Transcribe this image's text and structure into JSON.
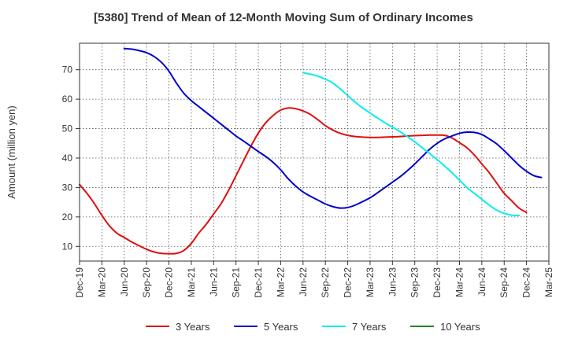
{
  "chart_data": {
    "type": "line",
    "title": "[5380]  Trend of Mean of 12-Month Moving Sum of Ordinary Incomes",
    "xlabel": "",
    "ylabel": "Amount (million yen)",
    "ylim": [
      5,
      79
    ],
    "yticks": [
      10,
      20,
      30,
      40,
      50,
      60,
      70
    ],
    "x_tick_labels": [
      "Dec-19",
      "Mar-20",
      "Jun-20",
      "Sep-20",
      "Dec-20",
      "Mar-21",
      "Jun-21",
      "Sep-21",
      "Dec-21",
      "Mar-22",
      "Jun-22",
      "Sep-22",
      "Dec-22",
      "Mar-23",
      "Jun-23",
      "Sep-23",
      "Dec-23",
      "Mar-24",
      "Jun-24",
      "Sep-24",
      "Dec-24",
      "Mar-25"
    ],
    "grid": true,
    "legend_position": "bottom",
    "series": [
      {
        "name": "3 Years",
        "color": "#dd1111",
        "start_index": 0,
        "values": [
          31,
          28,
          24.5,
          20.5,
          17,
          14.5,
          13,
          11.5,
          10.2,
          9,
          8.1,
          7.6,
          7.5,
          7.6,
          8.6,
          11,
          14.5,
          17.5,
          21,
          24.5,
          29,
          34,
          39,
          44,
          48.5,
          52,
          54.5,
          56.3,
          57,
          56.8,
          56,
          54.8,
          53,
          51,
          49.5,
          48.4,
          47.7,
          47.3,
          47.1,
          47,
          47,
          47.1,
          47.2,
          47.3,
          47.5,
          47.6,
          47.7,
          47.8,
          47.8,
          47.7,
          46.8,
          45.2,
          43.5,
          41,
          38,
          35,
          31.5,
          28,
          25.5,
          23,
          21.5
        ]
      },
      {
        "name": "5 Years",
        "color": "#0000cc",
        "start_index": 6,
        "values": [
          77.2,
          77,
          76.5,
          75.8,
          74.5,
          72.5,
          69.5,
          65.5,
          62,
          59.5,
          57.5,
          55.5,
          53.5,
          51.5,
          49.5,
          47.5,
          45.8,
          44,
          42.2,
          40.5,
          38.5,
          36,
          33,
          30.5,
          28.5,
          27,
          25.7,
          24.4,
          23.5,
          23,
          23.2,
          24,
          25.2,
          26.5,
          28.2,
          30,
          31.8,
          33.6,
          35.7,
          38,
          40.5,
          43,
          45,
          46.5,
          47.5,
          48.4,
          48.8,
          48.7,
          48,
          46.5,
          44.8,
          42.5,
          40,
          37.5,
          35.5,
          34,
          33.4
        ]
      },
      {
        "name": "7 Years",
        "color": "#00eeee",
        "start_index": 30,
        "values": [
          69,
          68.5,
          67.8,
          66.8,
          65.5,
          63.5,
          61.2,
          59,
          57,
          55.3,
          53.6,
          52,
          50.5,
          49,
          47.3,
          45.5,
          43.5,
          41.5,
          39.5,
          37.3,
          35,
          32.5,
          30,
          28,
          26,
          24,
          22.3,
          21.2,
          20.6,
          20.5
        ]
      },
      {
        "name": "10 Years",
        "color": "#228822",
        "start_index": 0,
        "values": []
      }
    ]
  }
}
